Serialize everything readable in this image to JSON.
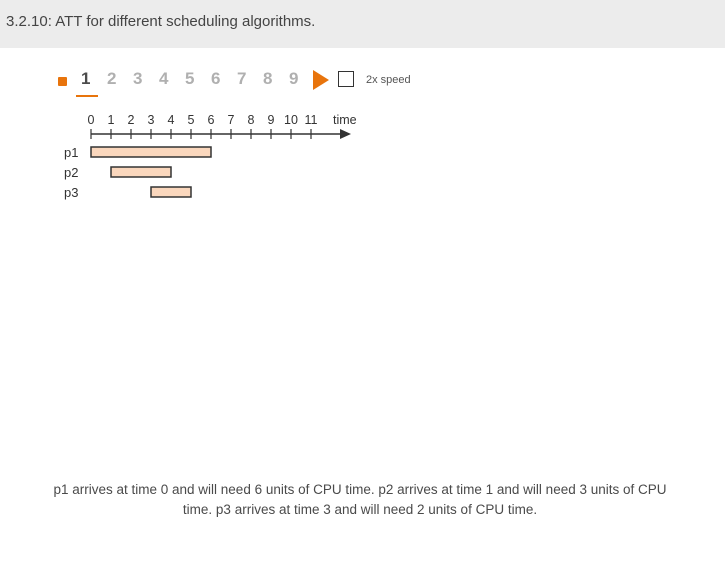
{
  "header": {
    "title": "3.2.10: ATT for different scheduling algorithms."
  },
  "controls": {
    "steps": [
      "1",
      "2",
      "3",
      "4",
      "5",
      "6",
      "7",
      "8",
      "9"
    ],
    "active_step": "1",
    "speed_label": "2x speed",
    "speed_checked": false
  },
  "chart_data": {
    "type": "gantt",
    "axis_label": "time",
    "ticks": [
      "0",
      "1",
      "2",
      "3",
      "4",
      "5",
      "6",
      "7",
      "8",
      "9",
      "10",
      "11"
    ],
    "processes": [
      {
        "name": "p1",
        "start": 0,
        "end": 6
      },
      {
        "name": "p2",
        "start": 1,
        "end": 4
      },
      {
        "name": "p3",
        "start": 3,
        "end": 5
      }
    ],
    "bar_fill": "#fad7bd"
  },
  "caption": "p1 arrives at time 0 and will need 6 units of CPU time. p2 arrives at time 1 and will need 3 units of CPU time. p3 arrives at time 3 and will need 2 units of CPU time."
}
